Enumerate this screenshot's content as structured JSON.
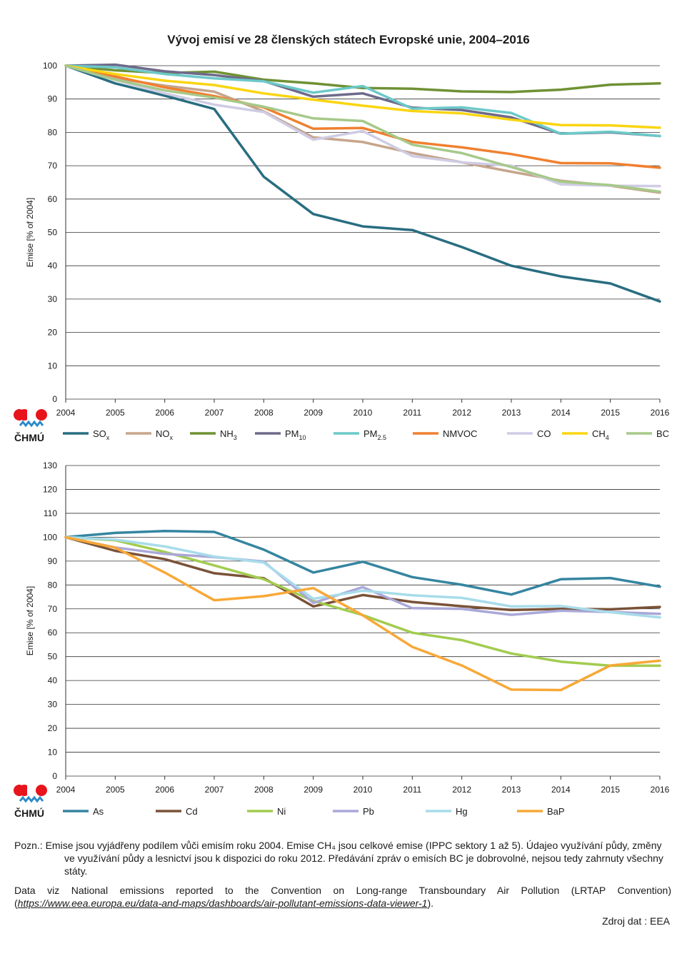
{
  "title": "Vývoj emisí ve 28 členských státech Evropské unie, 2004–2016",
  "logo_text": "ČHMÚ",
  "colors": {
    "SOx": "#286d80",
    "NOx": "#c6a58c",
    "NH3": "#6f9134",
    "PM10": "#6d6a8a",
    "PM25": "#6cc9c9",
    "NMVOC": "#f08030",
    "CO": "#cfcce4",
    "CH4": "#fad511",
    "BC": "#a6c98a",
    "As": "#3585a0",
    "Cd": "#7a5238",
    "Ni": "#a2cc4f",
    "Pb": "#aaa8d8",
    "Hg": "#a8dcea",
    "BaP": "#f8a838",
    "logo_red": "#e8141c",
    "logo_blue": "#2b8bc8",
    "grid": "#333333"
  },
  "chart_data": [
    {
      "type": "line",
      "ylabel": "Emise  [% of 2004]",
      "ylim": [
        0,
        100
      ],
      "yticks": [
        0,
        10,
        20,
        30,
        40,
        50,
        60,
        70,
        80,
        90,
        100
      ],
      "x": [
        "2004",
        "2005",
        "2006",
        "2007",
        "2008",
        "2009",
        "2010",
        "2011",
        "2012",
        "2013",
        "2014",
        "2015",
        "2016"
      ],
      "grid": true,
      "legend_position": "bottom",
      "series": [
        {
          "name": "SO",
          "sub": "x",
          "color_key": "SOx",
          "values": [
            100,
            94.7,
            91,
            87,
            66.7,
            55.5,
            51.8,
            50.7,
            45.6,
            40,
            36.8,
            34.7,
            29.3
          ]
        },
        {
          "name": "NO",
          "sub": "x",
          "color_key": "NOx",
          "values": [
            100,
            96.2,
            94,
            92.2,
            86.3,
            78.5,
            77.1,
            73.8,
            71,
            68.2,
            65.5,
            64,
            61.9
          ]
        },
        {
          "name": "NH",
          "sub": "3",
          "color_key": "NH3",
          "values": [
            100,
            98.6,
            97.8,
            98.2,
            95.8,
            94.7,
            93.3,
            93.1,
            92.3,
            92.1,
            92.8,
            94.3,
            94.7
          ]
        },
        {
          "name": "PM",
          "sub": "10",
          "color_key": "PM10",
          "values": [
            100,
            100.3,
            98.3,
            97.2,
            95.4,
            90.7,
            91.7,
            87.4,
            86.7,
            84.5,
            79.6,
            80,
            78.9
          ]
        },
        {
          "name": "PM",
          "sub": "2.5",
          "color_key": "PM25",
          "values": [
            100,
            99.5,
            97.5,
            96.2,
            95.3,
            91.9,
            93.9,
            87.1,
            87.5,
            85.8,
            79.6,
            80.2,
            78.9
          ]
        },
        {
          "name": "NMVOC",
          "sub": "",
          "color_key": "NMVOC",
          "values": [
            100,
            96.8,
            93.5,
            90.9,
            87.5,
            81.1,
            81.3,
            77.1,
            75.5,
            73.5,
            70.8,
            70.7,
            69.4
          ]
        },
        {
          "name": "CO",
          "sub": "",
          "color_key": "CO",
          "values": [
            100,
            95.7,
            91.7,
            88.3,
            86.1,
            77.8,
            80.4,
            72.9,
            71,
            70,
            64.4,
            64,
            63.9
          ]
        },
        {
          "name": "CH",
          "sub": "4",
          "color_key": "CH4",
          "values": [
            100,
            97.5,
            95.5,
            94.2,
            91.7,
            89.8,
            88,
            86.4,
            85.7,
            83.8,
            82.2,
            82.1,
            81.4
          ]
        },
        {
          "name": "BC",
          "sub": "",
          "color_key": "BC",
          "values": [
            100,
            95.8,
            92.6,
            90.4,
            87.7,
            84.2,
            83.4,
            76.3,
            73.8,
            69.6,
            65.2,
            64.2,
            62.2
          ]
        }
      ]
    },
    {
      "type": "line",
      "ylabel": "Emise  [% of 2004]",
      "ylim": [
        0,
        130
      ],
      "yticks": [
        0,
        10,
        20,
        30,
        40,
        50,
        60,
        70,
        80,
        90,
        100,
        110,
        120,
        130
      ],
      "x": [
        "2004",
        "2005",
        "2006",
        "2007",
        "2008",
        "2009",
        "2010",
        "2011",
        "2012",
        "2013",
        "2014",
        "2015",
        "2016"
      ],
      "grid": true,
      "legend_position": "bottom",
      "series": [
        {
          "name": "As",
          "sub": "",
          "color_key": "As",
          "values": [
            100,
            101.8,
            102.6,
            102.2,
            94.8,
            85.2,
            89.7,
            83.3,
            80.1,
            76,
            82.4,
            82.9,
            79.3
          ]
        },
        {
          "name": "Cd",
          "sub": "",
          "color_key": "Cd",
          "values": [
            100,
            94.3,
            90.8,
            84.9,
            82.8,
            71,
            75.8,
            72.9,
            71.1,
            69.5,
            70,
            69.8,
            70.8
          ]
        },
        {
          "name": "Ni",
          "sub": "",
          "color_key": "Ni",
          "values": [
            100,
            98.7,
            93.8,
            88.2,
            82.4,
            73.3,
            67.4,
            60,
            56.9,
            51.3,
            47.9,
            46.2,
            46.2
          ]
        },
        {
          "name": "Pb",
          "sub": "",
          "color_key": "Pb",
          "values": [
            100,
            95.7,
            93,
            91.7,
            89.8,
            72.5,
            79.1,
            70.3,
            70,
            67.5,
            69.2,
            68.7,
            67.9
          ]
        },
        {
          "name": "Hg",
          "sub": "",
          "color_key": "Hg",
          "values": [
            100,
            99,
            96.1,
            91.9,
            89.4,
            74.2,
            77.6,
            75.7,
            74.6,
            71,
            71.2,
            68.6,
            66.4
          ]
        },
        {
          "name": "BaP",
          "sub": "",
          "color_key": "BaP",
          "values": [
            100,
            95.6,
            85.2,
            73.6,
            75.3,
            78.7,
            67.3,
            54.1,
            46.3,
            36.2,
            36,
            46.3,
            48.3
          ]
        }
      ]
    }
  ],
  "notes": {
    "note1": "Pozn.: Emise jsou vyjádřeny podílem vůči emisím roku 2004. Emise CH₄ jsou celkové emise (IPPC sektory 1 až 5). Údajeo využívání půdy, změny ve využívání půdy a lesnictví jsou k dispozici do roku 2012. Předávání zpráv o emisích BC je dobrovolné, nejsou tedy zahrnuty všechny státy.",
    "note2_prefix": "Data viz National emissions reported to the Convention on Long-range Transboundary Air Pollution (LRTAP Convention) (",
    "note2_link": "https://www.eea.europa.eu/data-and-maps/dashboards/air-pollutant-emissions-data-viewer-1",
    "note2_suffix": ").",
    "source": "Zdroj dat : EEA"
  }
}
